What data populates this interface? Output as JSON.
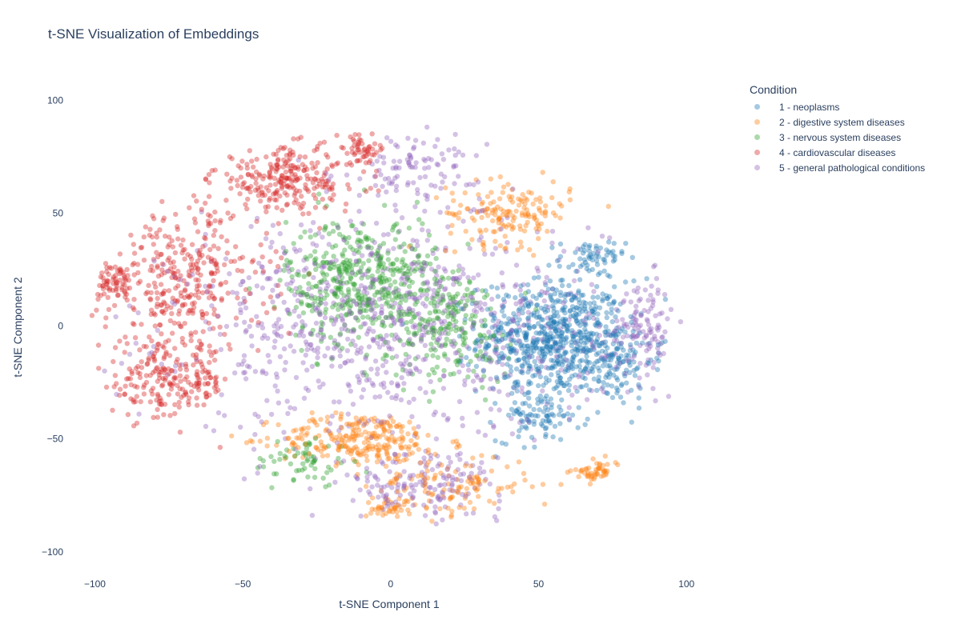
{
  "chart_data": {
    "type": "scatter",
    "title": "t-SNE Visualization of Embeddings",
    "xlabel": "t-SNE Component 1",
    "ylabel": "t-SNE Component 2",
    "xlim": [
      -105,
      104
    ],
    "ylim": [
      -110,
      109
    ],
    "xticks": [
      -100,
      -50,
      0,
      50,
      100
    ],
    "yticks": [
      -100,
      -50,
      0,
      50,
      100
    ],
    "xtick_labels": [
      "−100",
      "−50",
      "0",
      "50",
      "100"
    ],
    "ytick_labels": [
      "−100",
      "−50",
      "0",
      "50",
      "100"
    ],
    "grid": false,
    "legend_title": "Condition",
    "legend_position": "top-right",
    "marker_opacity": 0.4,
    "series": [
      {
        "name": "1 - neoplasms",
        "color": "#1f77b4",
        "clusters": [
          {
            "center": [
              55,
              -5
            ],
            "spread": [
              18,
              18
            ],
            "count": 650
          },
          {
            "center": [
              68,
              30
            ],
            "spread": [
              8,
              6
            ],
            "count": 60
          },
          {
            "center": [
              50,
              -40
            ],
            "spread": [
              10,
              8
            ],
            "count": 90
          },
          {
            "center": [
              75,
              -15
            ],
            "spread": [
              10,
              15
            ],
            "count": 120
          }
        ]
      },
      {
        "name": "2 - digestive system diseases",
        "color": "#ff7f0e",
        "clusters": [
          {
            "center": [
              -10,
              -50
            ],
            "spread": [
              20,
              8
            ],
            "count": 250
          },
          {
            "center": [
              40,
              50
            ],
            "spread": [
              15,
              10
            ],
            "count": 160
          },
          {
            "center": [
              20,
              -70
            ],
            "spread": [
              20,
              10
            ],
            "count": 120
          },
          {
            "center": [
              70,
              -65
            ],
            "spread": [
              6,
              4
            ],
            "count": 50
          },
          {
            "center": [
              0,
              -80
            ],
            "spread": [
              6,
              4
            ],
            "count": 40
          }
        ]
      },
      {
        "name": "3 - nervous system diseases",
        "color": "#2ca02c",
        "clusters": [
          {
            "center": [
              -10,
              20
            ],
            "spread": [
              18,
              20
            ],
            "count": 450
          },
          {
            "center": [
              20,
              0
            ],
            "spread": [
              15,
              18
            ],
            "count": 200
          },
          {
            "center": [
              -30,
              -60
            ],
            "spread": [
              12,
              8
            ],
            "count": 60
          }
        ]
      },
      {
        "name": "4 - cardiovascular diseases",
        "color": "#d62728",
        "clusters": [
          {
            "center": [
              -70,
              20
            ],
            "spread": [
              20,
              25
            ],
            "count": 350
          },
          {
            "center": [
              -35,
              65
            ],
            "spread": [
              18,
              10
            ],
            "count": 250
          },
          {
            "center": [
              -75,
              -25
            ],
            "spread": [
              15,
              12
            ],
            "count": 200
          },
          {
            "center": [
              -10,
              78
            ],
            "spread": [
              6,
              4
            ],
            "count": 50
          },
          {
            "center": [
              -95,
              20
            ],
            "spread": [
              6,
              6
            ],
            "count": 60
          }
        ]
      },
      {
        "name": "5 - general pathological conditions",
        "color": "#9467bd",
        "clusters": [
          {
            "center": [
              0,
              0
            ],
            "spread": [
              50,
              35
            ],
            "count": 900
          },
          {
            "center": [
              10,
              -70
            ],
            "spread": [
              20,
              10
            ],
            "count": 150
          },
          {
            "center": [
              85,
              0
            ],
            "spread": [
              8,
              15
            ],
            "count": 120
          },
          {
            "center": [
              10,
              70
            ],
            "spread": [
              15,
              10
            ],
            "count": 100
          }
        ]
      }
    ]
  }
}
